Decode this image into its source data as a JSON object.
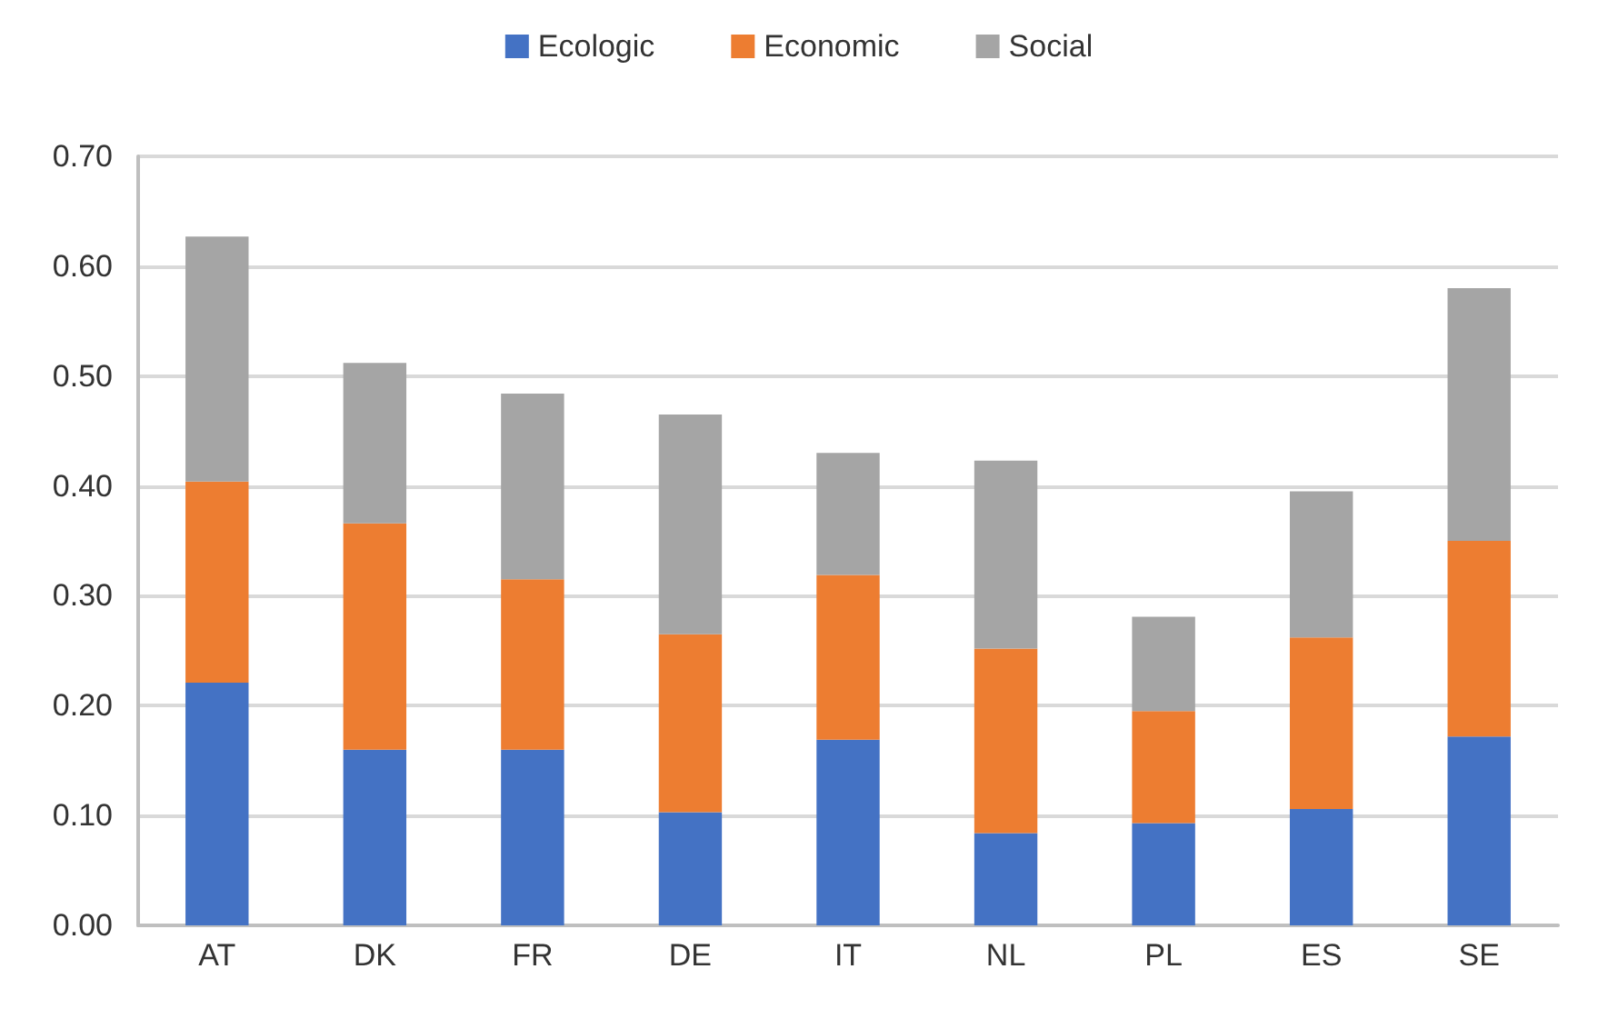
{
  "chart_data": {
    "type": "bar",
    "stacked": true,
    "categories": [
      "AT",
      "DK",
      "FR",
      "DE",
      "IT",
      "NL",
      "PL",
      "ES",
      "SE"
    ],
    "series": [
      {
        "name": "Ecologic",
        "color": "#4472c4",
        "values": [
          0.221,
          0.16,
          0.16,
          0.103,
          0.169,
          0.084,
          0.093,
          0.106,
          0.172
        ]
      },
      {
        "name": "Economic",
        "color": "#ed7d31",
        "values": [
          0.183,
          0.206,
          0.155,
          0.162,
          0.15,
          0.168,
          0.102,
          0.156,
          0.178
        ]
      },
      {
        "name": "Social",
        "color": "#a5a5a5",
        "values": [
          0.223,
          0.146,
          0.169,
          0.2,
          0.111,
          0.171,
          0.086,
          0.133,
          0.23
        ]
      }
    ],
    "ylim": [
      0,
      0.7
    ],
    "yticks": [
      {
        "value": 0,
        "label": "0.00"
      },
      {
        "value": 0.1,
        "label": "0.10"
      },
      {
        "value": 0.2,
        "label": "0.20"
      },
      {
        "value": 0.3,
        "label": "0.30"
      },
      {
        "value": 0.4,
        "label": "0.40"
      },
      {
        "value": 0.5,
        "label": "0.50"
      },
      {
        "value": 0.6,
        "label": "0.60"
      },
      {
        "value": 0.7,
        "label": "0.70"
      }
    ],
    "grid": "y",
    "legend": "top"
  }
}
